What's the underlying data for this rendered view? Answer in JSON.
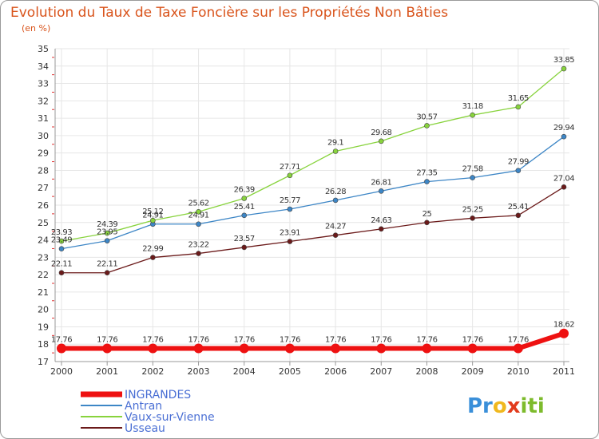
{
  "chart_data": {
    "type": "line",
    "title": "Evolution du Taux de Taxe Foncière sur les Propriétés Non Bâties",
    "subtitle": "(en %)",
    "x": [
      "2000",
      "2001",
      "2002",
      "2003",
      "2004",
      "2005",
      "2006",
      "2007",
      "2008",
      "2009",
      "2010",
      "2011"
    ],
    "ylim": [
      17,
      35
    ],
    "yticks": [
      "17",
      "18",
      "19",
      "20",
      "21",
      "22",
      "23",
      "24",
      "25",
      "26",
      "27",
      "28",
      "29",
      "30",
      "31",
      "32",
      "33",
      "34",
      "35"
    ],
    "grid": true,
    "legend_position": "bottom-left",
    "series": [
      {
        "name": "INGRANDES",
        "color": "#ee1111",
        "values": [
          17.76,
          17.76,
          17.76,
          17.76,
          17.76,
          17.76,
          17.76,
          17.76,
          17.76,
          17.76,
          17.76,
          18.62
        ],
        "labels": [
          "17.76",
          "17.76",
          "17.76",
          "17.76",
          "17.76",
          "17.76",
          "17.76",
          "17.76",
          "17.76",
          "17.76",
          "17.76",
          "18.62"
        ]
      },
      {
        "name": "Antran",
        "color": "#3d86c6",
        "values": [
          23.49,
          23.95,
          24.91,
          24.91,
          25.41,
          25.77,
          26.28,
          26.81,
          27.35,
          27.58,
          27.99,
          29.94
        ],
        "labels": [
          "23.49",
          "23.95",
          "24.91",
          "24.91",
          "25.41",
          "25.77",
          "26.28",
          "26.81",
          "27.35",
          "27.58",
          "27.99",
          "29.94"
        ]
      },
      {
        "name": "Vaux-sur-Vienne",
        "color": "#88d33d",
        "values": [
          23.93,
          24.39,
          25.12,
          25.62,
          26.39,
          27.71,
          29.1,
          29.68,
          30.57,
          31.18,
          31.65,
          33.85
        ],
        "labels": [
          "23.93",
          "24.39",
          "25.12",
          "25.62",
          "26.39",
          "27.71",
          "29.1",
          "29.68",
          "30.57",
          "31.18",
          "31.65",
          "33.85"
        ]
      },
      {
        "name": "Usseau",
        "color": "#6b1a1a",
        "values": [
          22.11,
          22.11,
          22.99,
          23.22,
          23.57,
          23.91,
          24.27,
          24.63,
          25,
          25.25,
          25.41,
          27.04
        ],
        "labels": [
          "22.11",
          "22.11",
          "22.99",
          "23.22",
          "23.57",
          "23.91",
          "24.27",
          "24.63",
          "25",
          "25.25",
          "25.41",
          "27.04"
        ]
      }
    ]
  },
  "logo": {
    "parts": [
      "Pr",
      "o",
      "x",
      "iti"
    ]
  }
}
